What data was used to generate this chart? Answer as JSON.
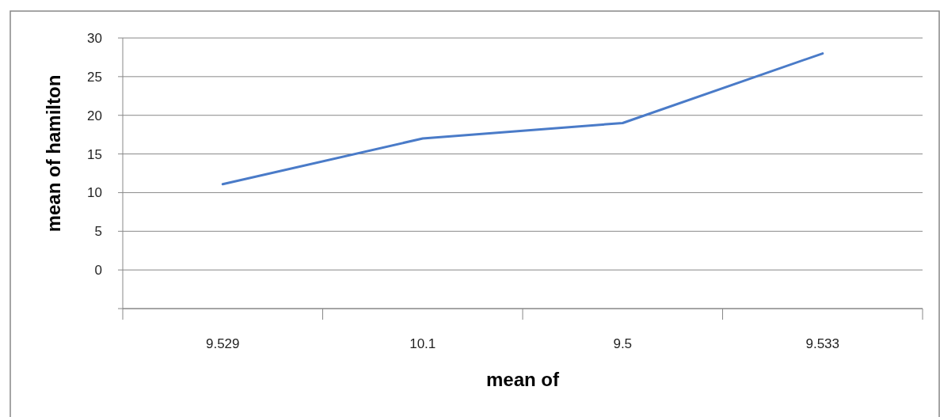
{
  "chart_data": {
    "type": "line",
    "xlabel": "mean of",
    "ylabel": "mean of hamilton",
    "categories": [
      "9.529",
      "10.1",
      "9.5",
      "9.533"
    ],
    "series": [
      {
        "color": "#4a7bc8",
        "values": [
          11.1,
          17,
          19,
          28
        ]
      }
    ],
    "ylim": [
      -5,
      30
    ],
    "yticks": [
      {
        "value": -5,
        "label": null
      },
      0,
      5,
      10,
      15,
      20,
      25,
      30
    ],
    "grid": "y"
  }
}
